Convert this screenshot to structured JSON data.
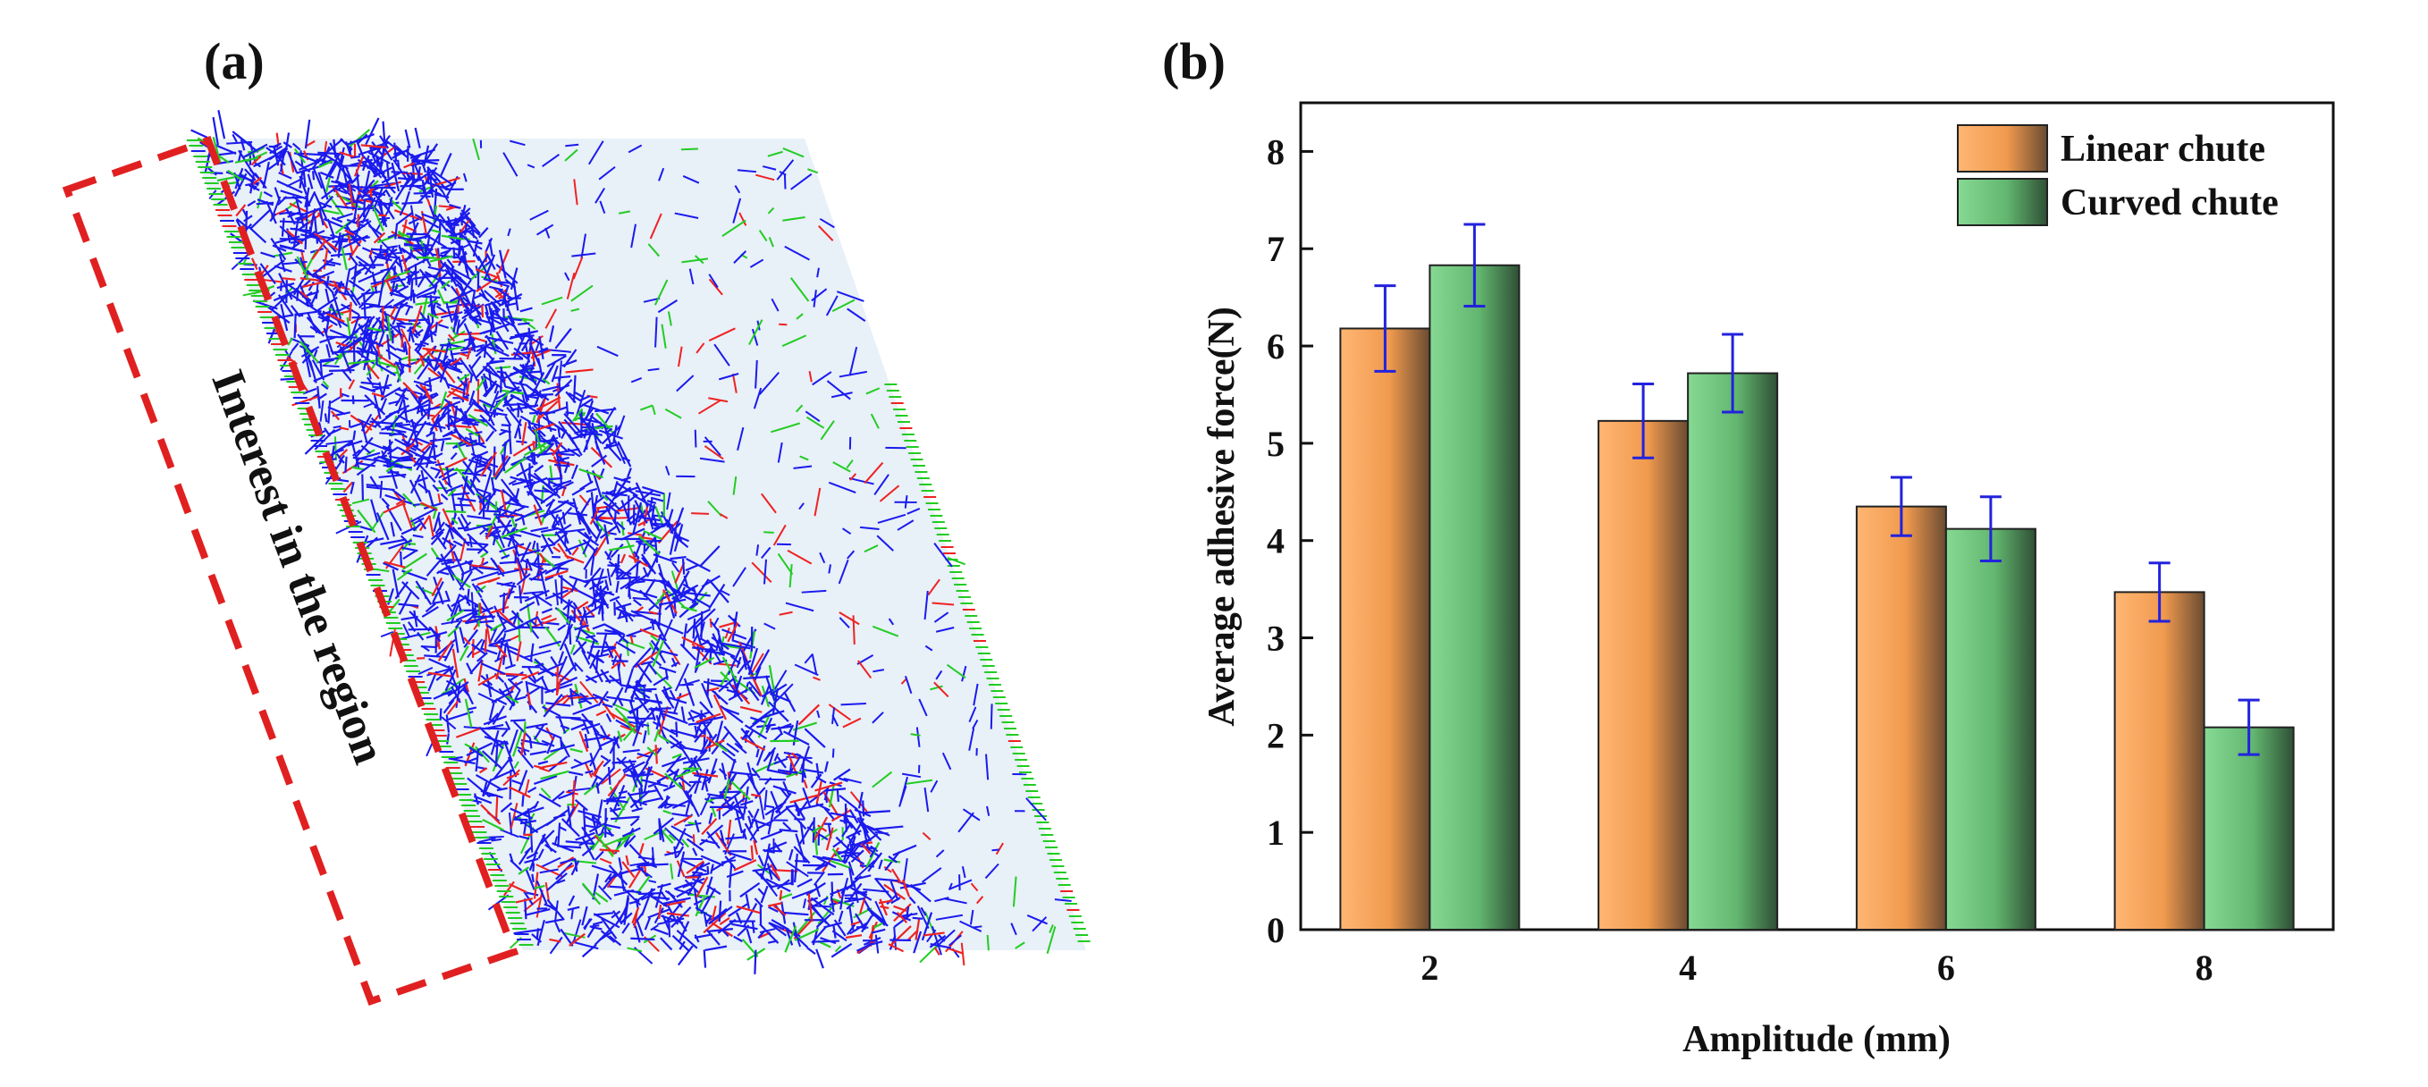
{
  "panels": {
    "a_label": "(a)",
    "b_label": "(b)",
    "region_text": "Interest in the region"
  },
  "colors": {
    "linear": "#f6a45c",
    "curved": "#6cc47a",
    "errorbar": "#2222dd",
    "network_blue": "#1a1aee",
    "network_red": "#ee2222",
    "network_green": "#22cc22",
    "region_box": "#e02020",
    "chute_bg": "#e8f0f8"
  },
  "chart_data": {
    "type": "bar",
    "title": "",
    "xlabel": "Amplitude (mm)",
    "ylabel": "Average adhesive force(N)",
    "categories": [
      "2",
      "4",
      "6",
      "8"
    ],
    "series": [
      {
        "name": "Linear chute",
        "values": [
          6.18,
          5.23,
          4.35,
          3.47
        ],
        "errors": [
          0.44,
          0.38,
          0.3,
          0.3
        ]
      },
      {
        "name": "Curved chute",
        "values": [
          6.83,
          5.72,
          4.12,
          2.08
        ],
        "errors": [
          0.42,
          0.4,
          0.33,
          0.28
        ]
      }
    ],
    "ylim": [
      0,
      8.5
    ],
    "yticks": [
      "0",
      "1",
      "2",
      "3",
      "4",
      "5",
      "6",
      "7",
      "8"
    ],
    "legend_position": "top-right",
    "grid": false
  }
}
